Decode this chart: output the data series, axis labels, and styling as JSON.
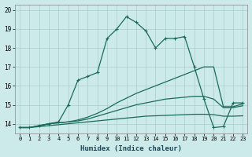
{
  "xlabel": "Humidex (Indice chaleur)",
  "ylabel": "",
  "background_color": "#cceaea",
  "grid_color": "#aacccc",
  "line_color": "#1a6b5a",
  "xlim": [
    -0.5,
    23.5
  ],
  "ylim": [
    13.5,
    20.3
  ],
  "yticks": [
    14,
    15,
    16,
    17,
    18,
    19,
    20
  ],
  "xticks": [
    0,
    1,
    2,
    3,
    4,
    5,
    6,
    7,
    8,
    9,
    10,
    11,
    12,
    13,
    14,
    15,
    16,
    17,
    18,
    19,
    20,
    21,
    22,
    23
  ],
  "lines": [
    {
      "x": [
        0,
        1,
        2,
        3,
        4,
        5,
        6,
        7,
        8,
        9,
        10,
        11,
        12,
        13,
        14,
        15,
        16,
        17,
        18,
        19,
        20,
        21,
        22,
        23
      ],
      "y": [
        13.8,
        13.8,
        13.9,
        14.0,
        14.1,
        15.0,
        16.3,
        16.5,
        16.7,
        18.5,
        19.0,
        19.65,
        19.35,
        18.9,
        18.0,
        18.5,
        18.5,
        18.6,
        17.0,
        15.3,
        13.8,
        13.85,
        15.1,
        15.1
      ],
      "marker": "+"
    },
    {
      "x": [
        0,
        1,
        2,
        3,
        4,
        5,
        6,
        7,
        8,
        9,
        10,
        11,
        12,
        13,
        14,
        15,
        16,
        17,
        18,
        19,
        20,
        21,
        22,
        23
      ],
      "y": [
        13.8,
        13.8,
        13.9,
        14.0,
        14.05,
        14.1,
        14.2,
        14.35,
        14.55,
        14.8,
        15.1,
        15.35,
        15.6,
        15.8,
        16.0,
        16.2,
        16.4,
        16.6,
        16.8,
        17.0,
        17.0,
        14.9,
        14.9,
        15.05
      ],
      "marker": null
    },
    {
      "x": [
        0,
        1,
        2,
        3,
        4,
        5,
        6,
        7,
        8,
        9,
        10,
        11,
        12,
        13,
        14,
        15,
        16,
        17,
        18,
        19,
        20,
        21,
        22,
        23
      ],
      "y": [
        13.8,
        13.8,
        13.9,
        14.0,
        14.05,
        14.1,
        14.15,
        14.25,
        14.4,
        14.55,
        14.7,
        14.85,
        15.0,
        15.1,
        15.2,
        15.3,
        15.35,
        15.4,
        15.45,
        15.45,
        15.3,
        14.85,
        14.85,
        14.95
      ],
      "marker": null
    },
    {
      "x": [
        0,
        1,
        2,
        3,
        4,
        5,
        6,
        7,
        8,
        9,
        10,
        11,
        12,
        13,
        14,
        15,
        16,
        17,
        18,
        19,
        20,
        21,
        22,
        23
      ],
      "y": [
        13.8,
        13.8,
        13.85,
        13.9,
        13.95,
        14.0,
        14.05,
        14.1,
        14.15,
        14.2,
        14.25,
        14.3,
        14.35,
        14.4,
        14.42,
        14.44,
        14.46,
        14.48,
        14.5,
        14.5,
        14.48,
        14.4,
        14.4,
        14.42
      ],
      "marker": null
    }
  ]
}
